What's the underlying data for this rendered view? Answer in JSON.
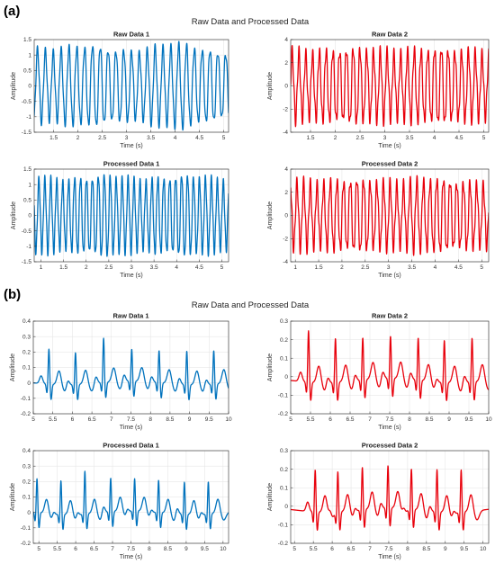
{
  "figure": {
    "panels": [
      {
        "label": "(a)",
        "suptitle": "Raw Data and Processed Data"
      },
      {
        "label": "(b)",
        "suptitle": "Raw Data and Processed Data"
      }
    ]
  },
  "chart_data": [
    {
      "type": "line",
      "panel": "(a)",
      "title": "Raw Data 1",
      "xlabel": "Time (s)",
      "ylabel": "Amplitude",
      "xlim": [
        1.1,
        5.1
      ],
      "ylim": [
        -1.5,
        1.5
      ],
      "xticks": [
        1.5,
        2,
        2.5,
        3,
        3.5,
        4,
        4.5,
        5
      ],
      "xtick_labels": [
        "1.5",
        "2",
        "2.5",
        "3",
        "3.5",
        "4",
        "4.5",
        "5"
      ],
      "yticks": [
        -1.5,
        -1,
        -0.5,
        0,
        0.5,
        1,
        1.5
      ],
      "ytick_labels": [
        "-1.5",
        "-1",
        "-0.5",
        "0",
        "0.5",
        "1",
        "1.5"
      ],
      "grid": true,
      "color": "#0072BD",
      "series": [
        {
          "kind": "oscillation",
          "cycles_per_s": 6.2,
          "amplitude": 1.2,
          "ripple": 0.12
        }
      ]
    },
    {
      "type": "line",
      "panel": "(a)",
      "title": "Raw Data 2",
      "xlabel": "Time (s)",
      "ylabel": "Amplitude",
      "xlim": [
        1.1,
        5.1
      ],
      "ylim": [
        -4,
        4
      ],
      "xticks": [
        1.5,
        2,
        2.5,
        3,
        3.5,
        4,
        4.5,
        5
      ],
      "xtick_labels": [
        "1.5",
        "2",
        "2.5",
        "3",
        "3.5",
        "4",
        "4.5",
        "5"
      ],
      "yticks": [
        -4,
        -2,
        0,
        2,
        4
      ],
      "ytick_labels": [
        "-4",
        "-2",
        "0",
        "2",
        "4"
      ],
      "grid": true,
      "color": "#E8000B",
      "series": [
        {
          "kind": "oscillation",
          "cycles_per_s": 7.3,
          "amplitude": 3.0,
          "ripple": 0.2
        }
      ]
    },
    {
      "type": "line",
      "panel": "(a)",
      "title": "Processed Data 1",
      "xlabel": "Time (s)",
      "ylabel": "Amplitude",
      "xlim": [
        0.85,
        5.15
      ],
      "ylim": [
        -1.5,
        1.5
      ],
      "xticks": [
        1,
        1.5,
        2,
        2.5,
        3,
        3.5,
        4,
        4.5,
        5
      ],
      "xtick_labels": [
        "1",
        "1.5",
        "2",
        "2.5",
        "3",
        "3.5",
        "4",
        "4.5",
        "5"
      ],
      "yticks": [
        -1.5,
        -1,
        -0.5,
        0,
        0.5,
        1,
        1.5
      ],
      "ytick_labels": [
        "-1.5",
        "-1",
        "-0.5",
        "0",
        "0.5",
        "1",
        "1.5"
      ],
      "grid": true,
      "color": "#0072BD",
      "series": [
        {
          "kind": "oscillation",
          "cycles_per_s": 7.6,
          "amplitude": 1.2,
          "ripple": 0.12
        }
      ]
    },
    {
      "type": "line",
      "panel": "(a)",
      "title": "Processed Data 2",
      "xlabel": "Time (s)",
      "ylabel": "Amplitude",
      "xlim": [
        0.9,
        5.15
      ],
      "ylim": [
        -4,
        4
      ],
      "xticks": [
        1,
        1.5,
        2,
        2.5,
        3,
        3.5,
        4,
        4.5,
        5
      ],
      "xtick_labels": [
        "1",
        "1.5",
        "2",
        "2.5",
        "3",
        "3.5",
        "4",
        "4.5",
        "5"
      ],
      "yticks": [
        -4,
        -2,
        0,
        2,
        4
      ],
      "ytick_labels": [
        "-4",
        "-2",
        "0",
        "2",
        "4"
      ],
      "grid": true,
      "color": "#E8000B",
      "series": [
        {
          "kind": "oscillation",
          "cycles_per_s": 7.0,
          "amplitude": 2.9,
          "ripple": 0.2
        }
      ]
    },
    {
      "type": "line",
      "panel": "(b)",
      "title": "Raw Data 1",
      "xlabel": "Time (s)",
      "ylabel": "Amplitude",
      "xlim": [
        5,
        10
      ],
      "ylim": [
        -0.2,
        0.4
      ],
      "xticks": [
        5,
        5.5,
        6,
        6.5,
        7,
        7.5,
        8,
        8.5,
        9,
        9.5,
        10
      ],
      "xtick_labels": [
        "5",
        "5.5",
        "6",
        "6.5",
        "7",
        "7.5",
        "8",
        "8.5",
        "9",
        "9.5",
        "10"
      ],
      "yticks": [
        -0.2,
        -0.1,
        0,
        0.1,
        0.2,
        0.3,
        0.4
      ],
      "ytick_labels": [
        "-0.2",
        "-0.1",
        "0",
        "0.1",
        "0.2",
        "0.3",
        "0.4"
      ],
      "grid": true,
      "color": "#0072BD",
      "series": [
        {
          "kind": "ecg",
          "beat_times": [
            5.4,
            6.08,
            6.8,
            7.52,
            8.22,
            8.93,
            9.62
          ],
          "peaks": [
            0.23,
            0.21,
            0.29,
            0.21,
            0.21,
            0.22,
            0.22
          ],
          "baseline": 0.0
        }
      ]
    },
    {
      "type": "line",
      "panel": "(b)",
      "title": "Raw Data 2",
      "xlabel": "Time (s)",
      "ylabel": "Amplitude",
      "xlim": [
        5,
        10
      ],
      "ylim": [
        -0.2,
        0.3
      ],
      "xticks": [
        5,
        5.5,
        6,
        6.5,
        7,
        7.5,
        8,
        8.5,
        9,
        9.5,
        10
      ],
      "xtick_labels": [
        "5",
        "5.5",
        "6",
        "6.5",
        "7",
        "7.5",
        "8",
        "8.5",
        "9",
        "9.5",
        "10"
      ],
      "yticks": [
        -0.2,
        -0.1,
        0,
        0.1,
        0.2,
        0.3
      ],
      "ytick_labels": [
        "-0.2",
        "-0.1",
        "0",
        "0.1",
        "0.2",
        "0.3"
      ],
      "grid": true,
      "color": "#E8000B",
      "series": [
        {
          "kind": "ecg",
          "beat_times": [
            5.45,
            6.13,
            6.82,
            7.52,
            8.22,
            8.88,
            9.58
          ],
          "peaks": [
            0.26,
            0.22,
            0.21,
            0.21,
            0.21,
            0.21,
            0.22
          ],
          "baseline": -0.02
        }
      ]
    },
    {
      "type": "line",
      "panel": "(b)",
      "title": "Processed Data 1",
      "xlabel": "Time (s)",
      "ylabel": "Amplitude",
      "xlim": [
        4.85,
        10.15
      ],
      "ylim": [
        -0.2,
        0.4
      ],
      "xticks": [
        5,
        5.5,
        6,
        6.5,
        7,
        7.5,
        8,
        8.5,
        9,
        9.5,
        10
      ],
      "xtick_labels": [
        "5",
        "5.5",
        "6",
        "6.5",
        "7",
        "7.5",
        "8",
        "8.5",
        "9",
        "9.5",
        "10"
      ],
      "yticks": [
        -0.2,
        -0.1,
        0,
        0.1,
        0.2,
        0.3,
        0.4
      ],
      "ytick_labels": [
        "-0.2",
        "-0.1",
        "0",
        "0.1",
        "0.2",
        "0.3",
        "0.4"
      ],
      "grid": true,
      "color": "#0072BD",
      "series": [
        {
          "kind": "ecg",
          "beat_times": [
            4.95,
            5.6,
            6.25,
            6.95,
            7.6,
            8.25,
            8.95,
            9.6
          ],
          "peaks": [
            0.22,
            0.22,
            0.28,
            0.22,
            0.21,
            0.21,
            0.21,
            0.21
          ],
          "baseline": 0.0
        }
      ]
    },
    {
      "type": "line",
      "panel": "(b)",
      "title": "Processed Data 2",
      "xlabel": "Time (s)",
      "ylabel": "Amplitude",
      "xlim": [
        4.9,
        10.15
      ],
      "ylim": [
        -0.2,
        0.3
      ],
      "xticks": [
        5,
        5.5,
        6,
        6.5,
        7,
        7.5,
        8,
        8.5,
        9,
        9.5,
        10
      ],
      "xtick_labels": [
        "5",
        "5.5",
        "6",
        "6.5",
        "7",
        "7.5",
        "8",
        "8.5",
        "9",
        "9.5",
        "10"
      ],
      "yticks": [
        -0.2,
        -0.1,
        0,
        0.1,
        0.2,
        0.3
      ],
      "ytick_labels": [
        "-0.2",
        "-0.1",
        "0",
        "0.1",
        "0.2",
        "0.3"
      ],
      "grid": true,
      "color": "#E8000B",
      "series": [
        {
          "kind": "ecg",
          "beat_times": [
            5.55,
            6.15,
            6.8,
            7.48,
            8.1,
            8.78,
            9.42
          ],
          "peaks": [
            0.21,
            0.2,
            0.21,
            0.21,
            0.2,
            0.21,
            0.21
          ],
          "baseline": -0.02
        }
      ]
    }
  ]
}
